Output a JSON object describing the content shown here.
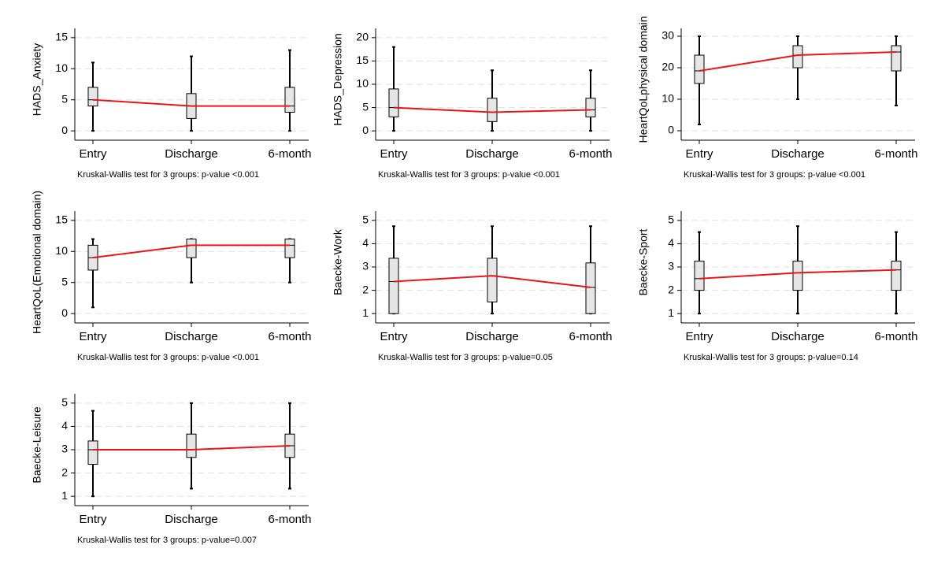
{
  "chart_data": [
    {
      "type": "box",
      "ylabel": "HADS_Anxiety",
      "note": "Kruskal-Wallis test for 3 groups: p-value <0.001",
      "categories": [
        "Entry",
        "Discharge",
        "6-month"
      ],
      "min": [
        0,
        0,
        0
      ],
      "q1": [
        4,
        2,
        3
      ],
      "median": [
        5,
        4,
        4
      ],
      "q3": [
        7,
        6,
        7
      ],
      "max": [
        11,
        12,
        13
      ],
      "ylim": [
        -1.5,
        16.5
      ],
      "yticks": [
        0,
        5,
        10,
        15
      ],
      "grid": true,
      "box_color": "#e6e6e6",
      "median_color": "#e8161b"
    },
    {
      "type": "box",
      "ylabel": "HADS_Depression",
      "note": "Kruskal-Wallis test for 3 groups: p-value <0.001",
      "categories": [
        "Entry",
        "Discharge",
        "6-month"
      ],
      "min": [
        0,
        0,
        0
      ],
      "q1": [
        3,
        2,
        3
      ],
      "median": [
        5,
        4,
        4.5
      ],
      "q3": [
        9,
        7,
        7
      ],
      "max": [
        18,
        13,
        13
      ],
      "ylim": [
        -2,
        22
      ],
      "yticks": [
        0,
        5,
        10,
        15,
        20
      ],
      "grid": true,
      "box_color": "#e6e6e6",
      "median_color": "#e8161b"
    },
    {
      "type": "box",
      "ylabel": "HeartQoLphysical domain",
      "note": "Kruskal-Wallis test for 3 groups: p-value <0.001",
      "categories": [
        "Entry",
        "Discharge",
        "6-month"
      ],
      "min": [
        2,
        10,
        8
      ],
      "q1": [
        15,
        20,
        19
      ],
      "median": [
        19,
        24,
        25
      ],
      "q3": [
        24,
        27,
        27
      ],
      "max": [
        30,
        30,
        30
      ],
      "ylim": [
        -3,
        32.5
      ],
      "yticks": [
        0,
        10,
        20,
        30
      ],
      "grid": true,
      "box_color": "#e6e6e6",
      "median_color": "#e8161b"
    },
    {
      "type": "box",
      "ylabel": "HeartQoL(Emotional domain)",
      "note": "Kruskal-Wallis test for 3 groups: p-value <0.001",
      "categories": [
        "Entry",
        "Discharge",
        "6-month"
      ],
      "min": [
        1,
        5,
        5
      ],
      "q1": [
        7,
        9,
        9
      ],
      "median": [
        9,
        11,
        11
      ],
      "q3": [
        11,
        12,
        12
      ],
      "max": [
        12,
        12,
        12
      ],
      "ylim": [
        -1.5,
        16.5
      ],
      "yticks": [
        0,
        5,
        10,
        15
      ],
      "grid": true,
      "box_color": "#e6e6e6",
      "median_color": "#e8161b"
    },
    {
      "type": "box",
      "ylabel": "Baecke-Work",
      "note": "Kruskal-Wallis test for 3 groups: p-value=0.05",
      "categories": [
        "Entry",
        "Discharge",
        "6-month"
      ],
      "min": [
        1,
        1,
        1
      ],
      "q1": [
        1,
        1.5,
        1
      ],
      "median": [
        2.375,
        2.625,
        2.125
      ],
      "q3": [
        3.375,
        3.375,
        3.175
      ],
      "max": [
        4.75,
        4.75,
        4.75
      ],
      "ylim": [
        0.6,
        5.4
      ],
      "yticks": [
        1,
        2,
        3,
        4,
        5
      ],
      "grid": true,
      "box_color": "#e6e6e6",
      "median_color": "#e8161b"
    },
    {
      "type": "box",
      "ylabel": "Baecke-Sport",
      "note": "Kruskal-Wallis test for 3 groups: p-value=0.14",
      "categories": [
        "Entry",
        "Discharge",
        "6-month"
      ],
      "min": [
        1,
        1,
        1
      ],
      "q1": [
        2,
        2,
        2
      ],
      "median": [
        2.5,
        2.75,
        2.875
      ],
      "q3": [
        3.25,
        3.25,
        3.25
      ],
      "max": [
        4.5,
        4.75,
        4.5
      ],
      "ylim": [
        0.6,
        5.4
      ],
      "yticks": [
        1,
        2,
        3,
        4,
        5
      ],
      "grid": true,
      "box_color": "#e6e6e6",
      "median_color": "#e8161b"
    },
    {
      "type": "box",
      "ylabel": "Baecke-Leisure",
      "note": "Kruskal-Wallis test for 3 groups: p-value=0.007",
      "categories": [
        "Entry",
        "Discharge",
        "6-month"
      ],
      "min": [
        1,
        1.33,
        1.33
      ],
      "q1": [
        2.375,
        2.67,
        2.67
      ],
      "median": [
        3,
        3,
        3.17
      ],
      "q3": [
        3.375,
        3.67,
        3.67
      ],
      "max": [
        4.67,
        5,
        5
      ],
      "ylim": [
        0.6,
        5.4
      ],
      "yticks": [
        1,
        2,
        3,
        4,
        5
      ],
      "grid": true,
      "box_color": "#e6e6e6",
      "median_color": "#e8161b"
    }
  ]
}
